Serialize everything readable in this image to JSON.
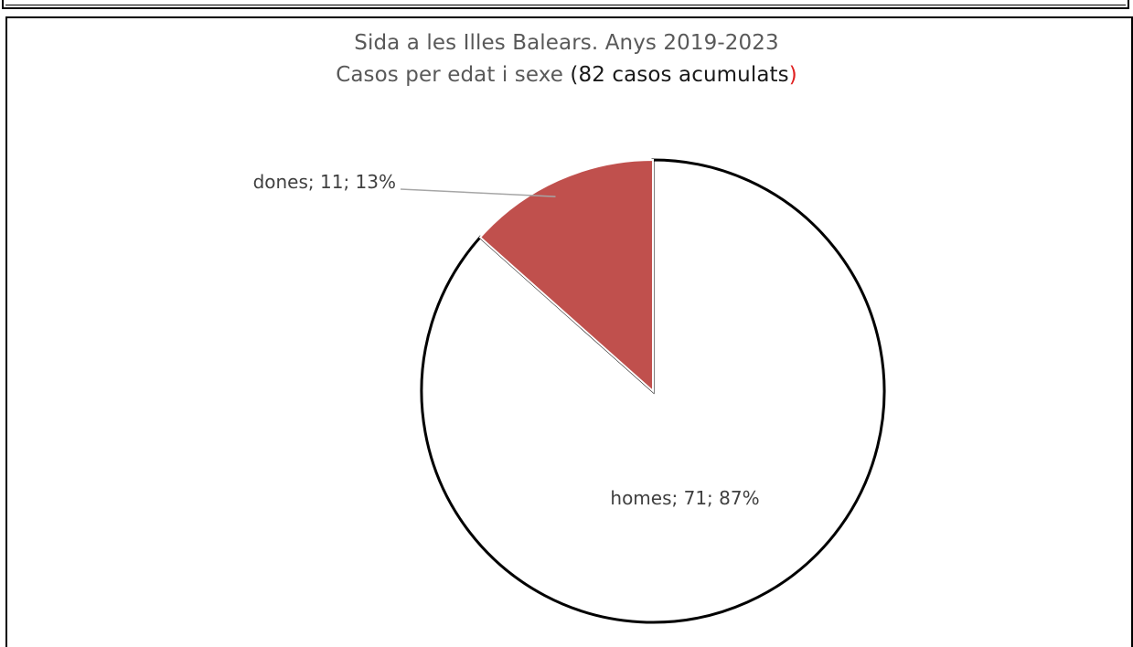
{
  "chart_data": {
    "type": "pie",
    "title": "Sida a les Illes Balears. Anys 2019-2023",
    "subtitle": {
      "prefix": "Casos per edat i sexe ",
      "open": "(",
      "highlight": "82 casos acumulats",
      "close": ")"
    },
    "slices": [
      {
        "name": "dones",
        "value": 11,
        "percent": "13%",
        "label": "dones; 11; 13%",
        "color": "#c0504d"
      },
      {
        "name": "homes",
        "value": 71,
        "percent": "87%",
        "label": "homes; 71; 87%",
        "color": "#ffffff"
      }
    ],
    "colors": {
      "subtitle_highlight": "#1a1a1a",
      "closing_paren": "#e02020",
      "title_text": "#595959"
    }
  }
}
